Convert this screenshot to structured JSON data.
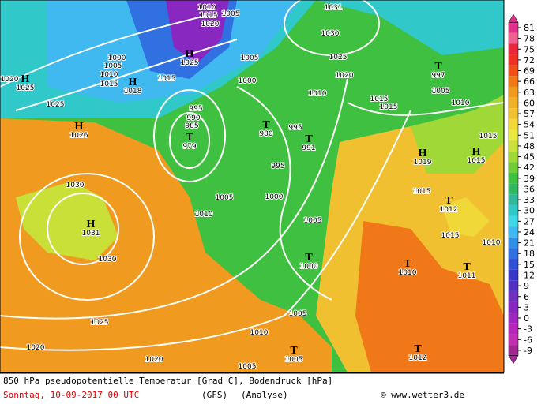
{
  "map": {
    "centers": [
      {
        "symbol": "H",
        "pressure": 1025
      },
      {
        "symbol": "H",
        "pressure": 1026
      },
      {
        "symbol": "H",
        "pressure": 1031
      },
      {
        "symbol": "H",
        "pressure": 1025
      },
      {
        "symbol": "H",
        "pressure": 1018
      },
      {
        "symbol": "T",
        "pressure": 979
      },
      {
        "symbol": "T",
        "pressure": 980
      },
      {
        "symbol": "T",
        "pressure": 991
      },
      {
        "symbol": "T",
        "pressure": 997
      },
      {
        "symbol": "H",
        "pressure": 1019
      },
      {
        "symbol": "H",
        "pressure": 1015
      },
      {
        "symbol": "T",
        "pressure": 1012
      },
      {
        "symbol": "T",
        "pressure": 1010
      },
      {
        "symbol": "T",
        "pressure": 1011
      },
      {
        "symbol": "T",
        "pressure": 1000
      },
      {
        "symbol": "T",
        "pressure": 1005
      },
      {
        "symbol": "T",
        "pressure": 1012
      }
    ],
    "isobar_labels": [
      1010,
      1015,
      1020,
      1005,
      1031,
      1030,
      1025,
      1020,
      1010,
      1015,
      1015,
      1005,
      1000,
      995,
      990,
      985,
      995,
      995,
      1005,
      1000,
      1010,
      1005,
      1030,
      1030,
      1025,
      1020,
      1020,
      1010,
      1005,
      1005,
      1005,
      1010,
      1015,
      1015,
      1015,
      1010,
      1025,
      1015,
      1010,
      1005,
      1000,
      1015,
      1020
    ]
  },
  "colorbar": {
    "labels": [
      81,
      78,
      75,
      72,
      69,
      66,
      63,
      60,
      57,
      54,
      51,
      48,
      45,
      42,
      39,
      36,
      33,
      30,
      27,
      24,
      21,
      18,
      15,
      12,
      9,
      6,
      3,
      0,
      -3,
      -6,
      -9
    ],
    "colors": [
      "#e0308a",
      "#f06090",
      "#e8283c",
      "#f03020",
      "#f05018",
      "#f07818",
      "#f09a20",
      "#f0b028",
      "#f0c030",
      "#f0d838",
      "#e8e840",
      "#c8e038",
      "#a0d838",
      "#70cc38",
      "#40c040",
      "#30b860",
      "#30b898",
      "#30c8c8",
      "#40d8e8",
      "#40b8f0",
      "#3090e8",
      "#3070e0",
      "#3050d8",
      "#3838c8",
      "#5030c0",
      "#7030c0",
      "#8828c0",
      "#a028c0",
      "#b828b8",
      "#c030b0",
      "#a02890"
    ]
  },
  "footer": {
    "title": "850 hPa pseudopotentielle Temperatur [Grad C], Bodendruck [hPa]",
    "date": "Sonntag, 10-09-2017  00 UTC",
    "model": "(GFS)",
    "run": "(Analyse)",
    "source": "© www.wetter3.de"
  }
}
